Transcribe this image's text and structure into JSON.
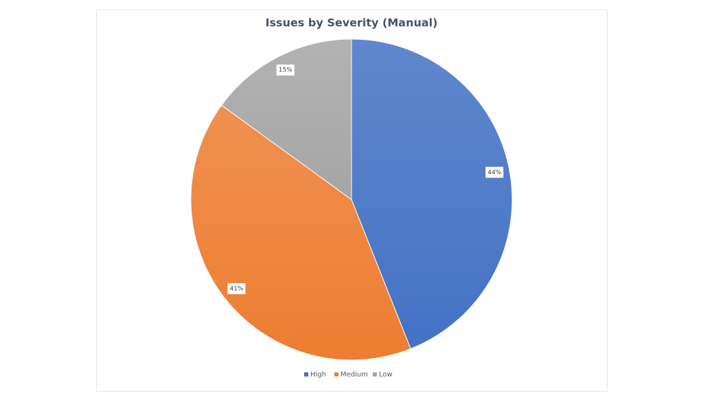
{
  "chart_data": {
    "type": "pie",
    "title": "Issues by Severity (Manual)",
    "categories": [
      "High",
      "Medium",
      "Low"
    ],
    "values": [
      44,
      41,
      15
    ],
    "value_labels": [
      "44%",
      "41%",
      "15%"
    ],
    "colors": [
      "#4472c4",
      "#ed7d31",
      "#a5a5a5"
    ],
    "legend": "bottom"
  }
}
